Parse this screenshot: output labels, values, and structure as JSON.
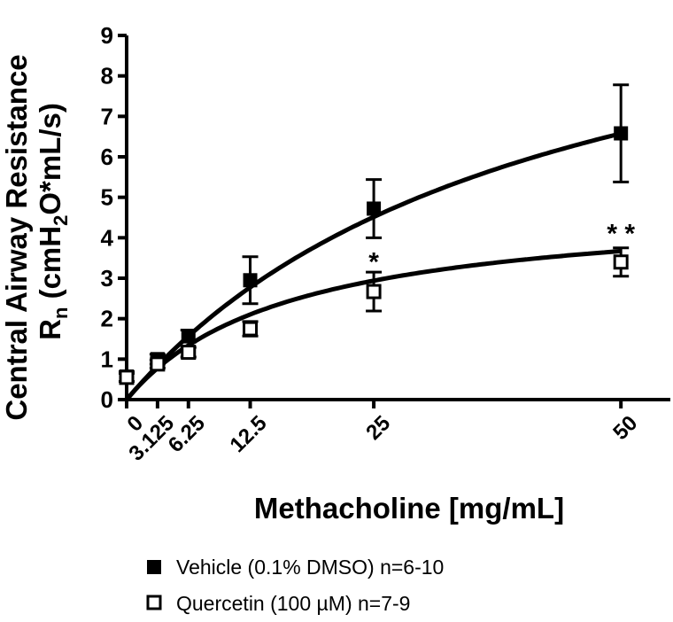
{
  "chart_data": {
    "type": "scatter",
    "xlabel": "Methacholine [mg/mL]",
    "ylabel_line1": "Central Airway Resistance",
    "ylabel_line2_main": "R",
    "ylabel_line2_sub": "n",
    "ylabel_line2_rest_a": " (cmH",
    "ylabel_line2_sub2": "2",
    "ylabel_line2_rest_b": "O*mL/s)",
    "xlim": [
      0,
      55
    ],
    "ylim": [
      0,
      9
    ],
    "x_ticks": [
      {
        "value": 0,
        "label": "0"
      },
      {
        "value": 3.125,
        "label": "3.125"
      },
      {
        "value": 6.25,
        "label": "6.25"
      },
      {
        "value": 12.5,
        "label": "12.5"
      },
      {
        "value": 25,
        "label": "25"
      },
      {
        "value": 50,
        "label": "50"
      }
    ],
    "y_ticks": [
      0,
      1,
      2,
      3,
      4,
      5,
      6,
      7,
      8,
      9
    ],
    "series": [
      {
        "name": "Vehicle (0.1% DMSO) n=6-10",
        "marker": "filled-square",
        "color": "#000000",
        "x": [
          0,
          3.125,
          6.25,
          12.5,
          25,
          50
        ],
        "y": [
          0.57,
          1.0,
          1.57,
          2.95,
          4.72,
          6.58
        ],
        "err": [
          0.12,
          0.12,
          0.15,
          0.58,
          0.72,
          1.2
        ],
        "fit": {
          "ymax": 12.1,
          "k": 42
        }
      },
      {
        "name": "Quercetin (100 µM) n=7-9",
        "marker": "open-square",
        "color": "#000000",
        "x": [
          0,
          3.125,
          6.25,
          12.5,
          25,
          50
        ],
        "y": [
          0.55,
          0.88,
          1.17,
          1.75,
          2.67,
          3.4
        ],
        "err": [
          0.1,
          0.1,
          0.12,
          0.18,
          0.48,
          0.35
        ],
        "fit": {
          "ymax": 4.88,
          "k": 16.5
        }
      }
    ],
    "annotations": [
      {
        "text": "*",
        "x": 25,
        "y": 3.45
      },
      {
        "text": "* *",
        "x": 50,
        "y": 4.15
      }
    ]
  }
}
